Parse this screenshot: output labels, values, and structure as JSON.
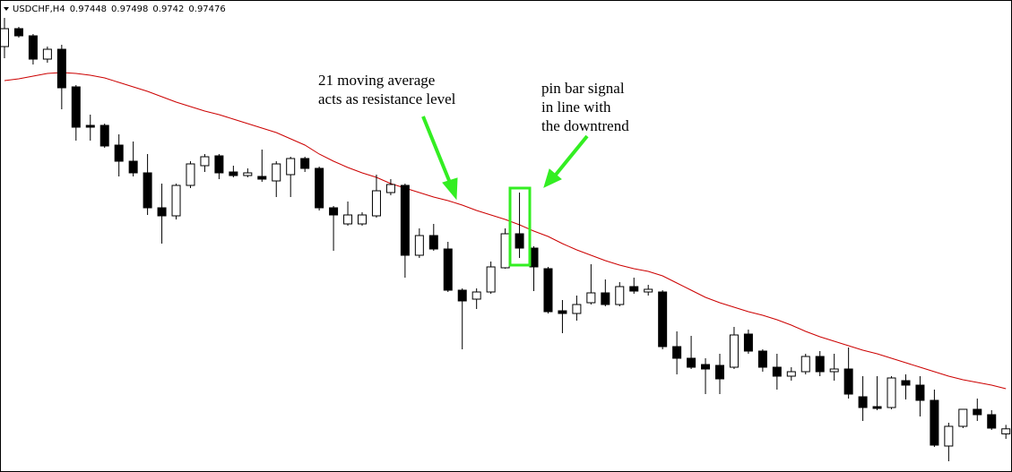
{
  "chart_data": {
    "type": "candlestick",
    "title": "USDCHF,H4",
    "categories": [
      null,
      null,
      null,
      null,
      null,
      null,
      null,
      null,
      null,
      null,
      null,
      null,
      null,
      null,
      null,
      null,
      null,
      null,
      null,
      null,
      null,
      null,
      null,
      null,
      null,
      null,
      null,
      null,
      null,
      null,
      null,
      null,
      null,
      null,
      null,
      null,
      null,
      null,
      null,
      null,
      null,
      null,
      null,
      null,
      null,
      null,
      null,
      null,
      null,
      null,
      null,
      null,
      null,
      null,
      null,
      null,
      null,
      null,
      null,
      null,
      null,
      null,
      null,
      null,
      null,
      null,
      null,
      null,
      null,
      null,
      null
    ],
    "open": [
      0.9961,
      0.9971,
      0.9967,
      0.9954,
      0.99595,
      0.99385,
      0.9917,
      0.9917,
      0.9906,
      0.9897,
      0.98905,
      0.9871,
      0.98665,
      0.98835,
      0.98945,
      0.99,
      0.9891,
      0.9889,
      0.98885,
      0.9886,
      0.98895,
      0.98985,
      0.9893,
      0.9871,
      0.9862,
      0.9862,
      0.98665,
      0.98795,
      0.98835,
      0.98445,
      0.98555,
      0.9848,
      0.9825,
      0.982,
      0.9824,
      0.98375,
      0.98565,
      0.98485,
      0.9837,
      0.98135,
      0.9812,
      0.9818,
      0.98235,
      0.9817,
      0.9827,
      0.9824,
      0.9824,
      0.97935,
      0.9787,
      0.97835,
      0.9783,
      0.9782,
      0.98005,
      0.9791,
      0.9782,
      0.9777,
      0.97795,
      0.9788,
      0.97795,
      0.9781,
      0.97655,
      0.976,
      0.97595,
      0.97745,
      0.9772,
      0.97635,
      0.9738,
      0.9749,
      0.97585,
      0.97555,
      0.97448
    ],
    "high": [
      0.9977,
      0.9972,
      0.9968,
      0.9961,
      0.9962,
      0.99395,
      0.9923,
      0.9918,
      0.9912,
      0.9908,
      0.9901,
      0.98845,
      0.98845,
      0.9897,
      0.9901,
      0.9901,
      0.98945,
      0.9893,
      0.99035,
      0.9897,
      0.98995,
      0.98995,
      0.9894,
      0.9872,
      0.98745,
      0.98685,
      0.98895,
      0.9887,
      0.98845,
      0.98595,
      0.9862,
      0.9852,
      0.9826,
      0.9826,
      0.9841,
      0.98595,
      0.98795,
      0.98495,
      0.9838,
      0.98195,
      0.9822,
      0.98395,
      0.9831,
      0.98295,
      0.9832,
      0.9828,
      0.9825,
      0.9802,
      0.97995,
      0.9787,
      0.97895,
      0.98045,
      0.9803,
      0.9792,
      0.97895,
      0.9782,
      0.97895,
      0.9791,
      0.97895,
      0.9793,
      0.9777,
      0.9777,
      0.9777,
      0.9778,
      0.9777,
      0.97695,
      0.9751,
      0.9757,
      0.97645,
      0.9758,
      0.97498
    ],
    "low": [
      0.99545,
      0.9966,
      0.9951,
      0.9952,
      0.9926,
      0.99085,
      0.99085,
      0.99045,
      0.98885,
      0.98885,
      0.9867,
      0.9851,
      0.98645,
      0.9882,
      0.9891,
      0.9887,
      0.9888,
      0.9888,
      0.98855,
      0.9877,
      0.9877,
      0.9891,
      0.98695,
      0.9847,
      0.9861,
      0.9861,
      0.98655,
      0.9878,
      0.9832,
      0.9843,
      0.9847,
      0.9824,
      0.9792,
      0.98145,
      0.9823,
      0.9837,
      0.9843,
      0.98245,
      0.9812,
      0.9801,
      0.9808,
      0.9817,
      0.9816,
      0.9816,
      0.9823,
      0.9822,
      0.9792,
      0.9778,
      0.9781,
      0.9767,
      0.9767,
      0.9781,
      0.97895,
      0.97795,
      0.97695,
      0.97745,
      0.9778,
      0.9777,
      0.97745,
      0.97645,
      0.9752,
      0.9758,
      0.97585,
      0.9764,
      0.97545,
      0.97375,
      0.97295,
      0.9748,
      0.9752,
      0.9747,
      0.9742
    ],
    "close": [
      0.9971,
      0.9967,
      0.9954,
      0.99595,
      0.9938,
      0.9916,
      0.9916,
      0.99055,
      0.9897,
      0.98905,
      0.9871,
      0.98665,
      0.98835,
      0.98955,
      0.98995,
      0.98905,
      0.9889,
      0.98905,
      0.9887,
      0.98955,
      0.98985,
      0.9893,
      0.9871,
      0.9867,
      0.9867,
      0.9867,
      0.98805,
      0.9884,
      0.98445,
      0.98555,
      0.9848,
      0.9825,
      0.9819,
      0.9824,
      0.9838,
      0.98565,
      0.98485,
      0.9838,
      0.9813,
      0.9812,
      0.9817,
      0.98235,
      0.9817,
      0.9827,
      0.98245,
      0.98255,
      0.97935,
      0.9787,
      0.9782,
      0.9781,
      0.97755,
      0.98,
      0.9791,
      0.9782,
      0.9777,
      0.97795,
      0.9788,
      0.97795,
      0.9781,
      0.9767,
      0.97595,
      0.9759,
      0.9776,
      0.9772,
      0.97635,
      0.97385,
      0.9749,
      0.97585,
      0.97555,
      0.9748,
      0.97476
    ],
    "up_color": "#ffffff",
    "down_color": "#000000",
    "ma": {
      "color": "#cc0000",
      "values": [
        0.9942,
        0.9943,
        0.99445,
        0.9946,
        0.99465,
        0.9946,
        0.9945,
        0.99435,
        0.9941,
        0.99385,
        0.9936,
        0.9933,
        0.993,
        0.99275,
        0.9925,
        0.9923,
        0.99205,
        0.9918,
        0.99155,
        0.9913,
        0.99095,
        0.9906,
        0.9901,
        0.9897,
        0.98935,
        0.98905,
        0.9888,
        0.98845,
        0.9882,
        0.98795,
        0.9877,
        0.9875,
        0.98725,
        0.98695,
        0.9867,
        0.98645,
        0.98615,
        0.9858,
        0.9855,
        0.9851,
        0.98475,
        0.98445,
        0.98415,
        0.9839,
        0.9837,
        0.98355,
        0.9833,
        0.9829,
        0.9825,
        0.9821,
        0.9818,
        0.98155,
        0.9813,
        0.9811,
        0.98085,
        0.98055,
        0.9802,
        0.9799,
        0.97965,
        0.9794,
        0.97915,
        0.97895,
        0.9787,
        0.97845,
        0.9782,
        0.97795,
        0.9777,
        0.9775,
        0.97735,
        0.9772,
        0.977
      ]
    },
    "ylim": [
      0.97235,
      0.9987
    ],
    "annotations": [
      "21 moving average",
      "acts as resistance level",
      "pin bar signal",
      "in line with",
      "the downtrend"
    ]
  }
}
